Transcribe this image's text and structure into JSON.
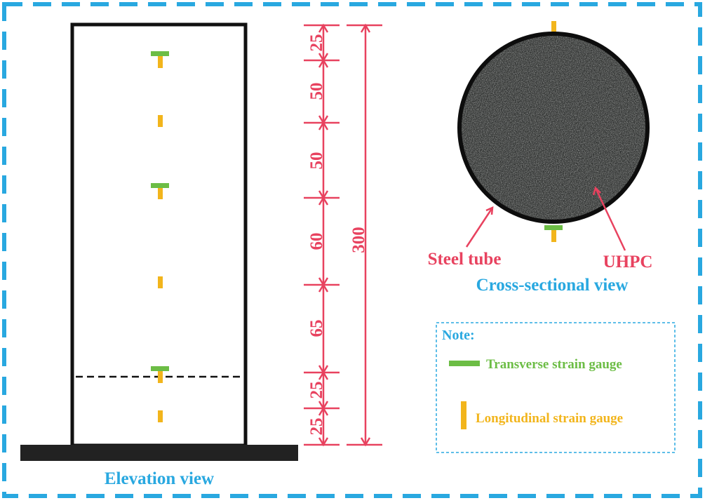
{
  "elevation": {
    "caption": "Elevation view",
    "segment_labels": [
      "25",
      "50",
      "50",
      "60",
      "65",
      "25",
      "25"
    ],
    "total_label": "300"
  },
  "cross_section": {
    "caption": "Cross-sectional view",
    "steel_label": "Steel tube",
    "uhpc_label": "UHPC"
  },
  "note": {
    "title": "Note:",
    "transverse": "Transverse strain gauge",
    "longitudinal": "Longitudinal strain gauge"
  },
  "colors": {
    "frame": "#29a8e0",
    "dimension": "#e8425f",
    "transverse_gauge": "#6cbd45",
    "longitudinal_gauge": "#f2b51c",
    "caption": "#29a8e0"
  }
}
